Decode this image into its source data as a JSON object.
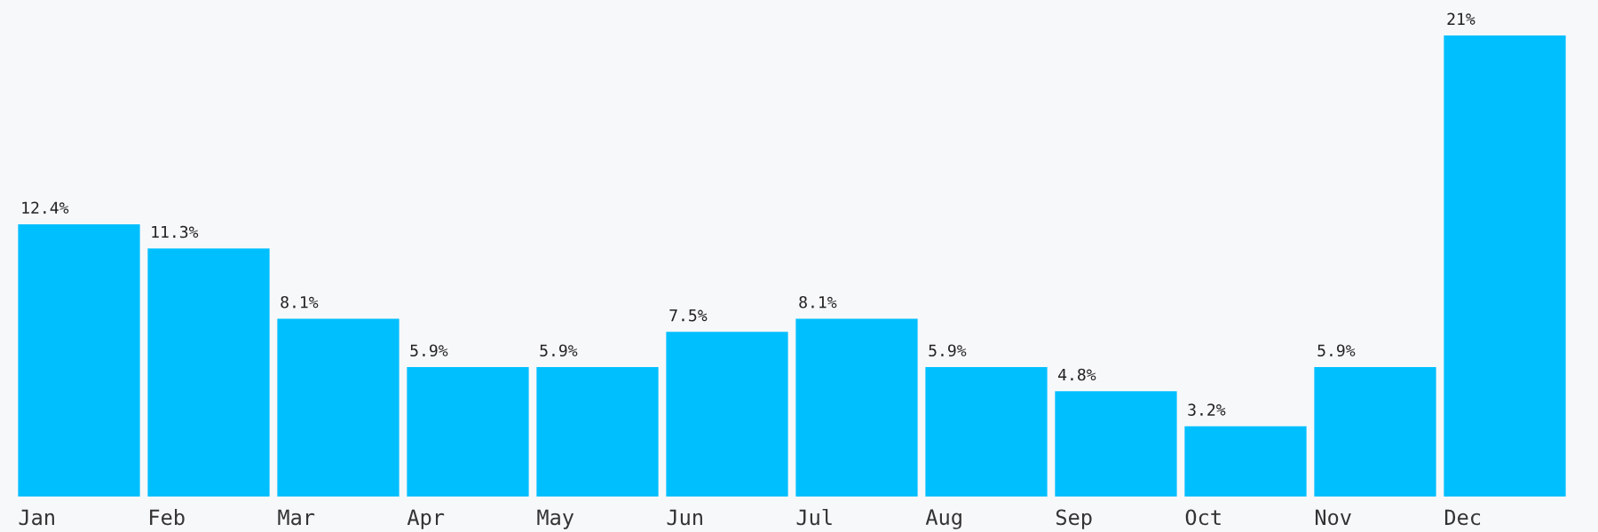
{
  "chart_data": {
    "type": "bar",
    "categories": [
      "Jan",
      "Feb",
      "Mar",
      "Apr",
      "May",
      "Jun",
      "Jul",
      "Aug",
      "Sep",
      "Oct",
      "Nov",
      "Dec"
    ],
    "values": [
      12.4,
      11.3,
      8.1,
      5.9,
      5.9,
      7.5,
      8.1,
      5.9,
      4.8,
      3.2,
      5.9,
      21
    ],
    "value_labels": [
      "12.4%",
      "11.3%",
      "8.1%",
      "5.9%",
      "5.9%",
      "7.5%",
      "8.1%",
      "5.9%",
      "4.8%",
      "3.2%",
      "5.9%",
      "21%"
    ],
    "color": "#00bfff",
    "tick_labels": "x",
    "grid": false,
    "legend": false
  }
}
